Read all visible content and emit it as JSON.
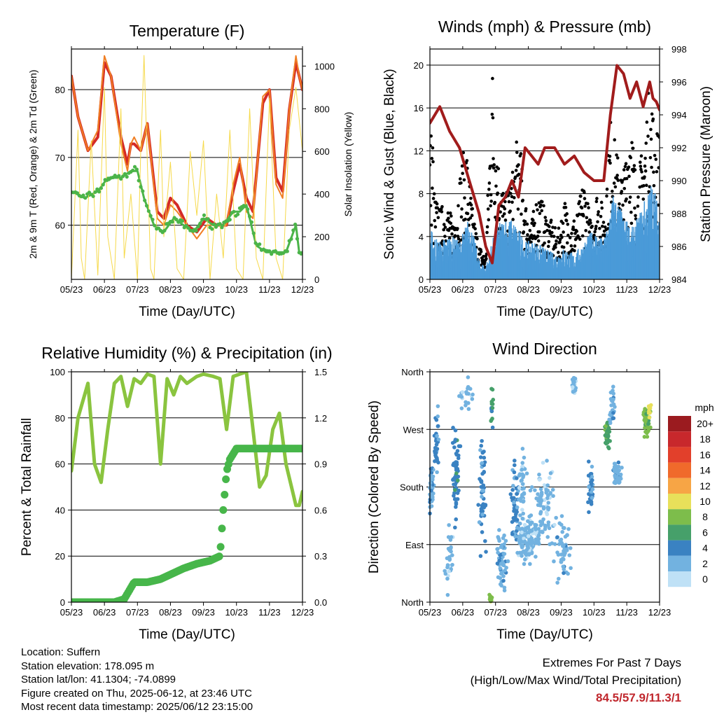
{
  "colors": {
    "temp_2m": "#f07f24",
    "temp_9m": "#d42a26",
    "dewpoint": "#4bb449",
    "solar": "#f6d94a",
    "wind": "#4a9ad8",
    "gust": "#000000",
    "pressure": "#a11c1c",
    "rh": "#8ac43f",
    "precip": "#47b64a"
  },
  "chart_data": [
    {
      "id": "temperature",
      "type": "line",
      "title": "Temperature (F)",
      "xlabel": "Time (Day/UTC)",
      "ylabel": "2m & 9m T (Red, Orange) & 2m Td (Green)",
      "y2label": "Solar Insolation (Yellow)",
      "x_ticks": [
        "05/23",
        "06/23",
        "07/23",
        "08/23",
        "09/23",
        "10/23",
        "11/23",
        "12/23"
      ],
      "ylim": [
        52,
        86
      ],
      "y_ticks": [
        60,
        70,
        80
      ],
      "y2lim": [
        0,
        1080
      ],
      "y2_ticks": [
        0,
        200,
        400,
        600,
        800,
        1000
      ],
      "grid": true,
      "series": [
        {
          "key": "temp_9m",
          "axis": "left",
          "width": 4,
          "x": [
            0,
            0.2,
            0.5,
            0.8,
            1.0,
            1.2,
            1.5,
            1.7,
            1.8,
            1.9,
            2.1,
            2.3,
            2.6,
            2.8,
            3.0,
            3.2,
            3.5,
            3.8,
            4.1,
            4.4,
            4.7,
            4.9,
            5.1,
            5.3,
            5.5,
            5.8,
            6.0,
            6.2,
            6.4,
            6.6,
            6.8,
            6.9,
            7.0
          ],
          "y": [
            82,
            76,
            71,
            73,
            84,
            82,
            73,
            69,
            72,
            72,
            71,
            75,
            62,
            61,
            64,
            63,
            60,
            59,
            61,
            60,
            60,
            65,
            69,
            64,
            62,
            78,
            80,
            67,
            65,
            77,
            84,
            82,
            80
          ]
        },
        {
          "key": "temp_2m",
          "axis": "left",
          "width": 2,
          "x": [
            0,
            0.2,
            0.5,
            0.8,
            1.0,
            1.2,
            1.5,
            1.7,
            1.8,
            1.9,
            2.1,
            2.3,
            2.6,
            2.8,
            3.0,
            3.2,
            3.5,
            3.8,
            4.1,
            4.4,
            4.7,
            4.9,
            5.1,
            5.3,
            5.5,
            5.8,
            6.0,
            6.2,
            6.4,
            6.6,
            6.8,
            6.9,
            7.0
          ],
          "y": [
            82,
            76,
            71,
            74,
            85,
            82,
            72,
            68,
            72,
            73,
            71,
            75,
            61,
            60,
            63,
            62,
            60,
            58,
            60,
            60,
            60,
            66,
            70,
            62,
            61,
            79,
            80,
            66,
            64,
            77,
            85,
            82,
            80
          ]
        },
        {
          "key": "dewpoint",
          "axis": "left",
          "width": 3,
          "x": [
            0,
            0.4,
            0.8,
            1.1,
            1.5,
            1.8,
            2.0,
            2.2,
            2.5,
            2.8,
            3.1,
            3.4,
            3.7,
            4.0,
            4.3,
            4.6,
            4.9,
            5.1,
            5.3,
            5.6,
            5.9,
            6.2,
            6.5,
            6.8,
            6.9,
            7.0
          ],
          "y": [
            65,
            64,
            65,
            67,
            67,
            68,
            68,
            64,
            60,
            59,
            61,
            60,
            59,
            61,
            60,
            60,
            62,
            62,
            63,
            57,
            56,
            56,
            56,
            60,
            56,
            56
          ]
        },
        {
          "key": "solar",
          "axis": "right",
          "width": 1,
          "x": [
            0,
            0.2,
            0.3,
            0.4,
            0.6,
            0.8,
            1.0,
            1.1,
            1.3,
            1.5,
            1.6,
            1.8,
            2.0,
            2.1,
            2.2,
            2.4,
            2.5,
            2.7,
            2.8,
            3.0,
            3.2,
            3.4,
            3.6,
            3.8,
            4.0,
            4.2,
            4.4,
            4.6,
            4.8,
            5.0,
            5.2,
            5.4,
            5.6,
            5.8,
            6.0,
            6.2,
            6.4,
            6.6,
            6.8,
            7.0
          ],
          "y": [
            0,
            700,
            100,
            0,
            650,
            20,
            900,
            200,
            0,
            800,
            100,
            400,
            0,
            600,
            1050,
            50,
            0,
            700,
            200,
            550,
            50,
            0,
            600,
            300,
            650,
            0,
            400,
            100,
            700,
            50,
            0,
            800,
            100,
            0,
            850,
            100,
            0,
            700,
            900,
            600
          ]
        }
      ]
    },
    {
      "id": "winds",
      "type": "scatter",
      "title": "Winds (mph) & Pressure (mb)",
      "xlabel": "Time (Day/UTC)",
      "ylabel": "Sonic Wind & Gust (Blue, Black)",
      "y2label": "Station Pressure (Maroon)",
      "x_ticks": [
        "05/23",
        "06/23",
        "07/23",
        "08/23",
        "09/23",
        "10/23",
        "11/23",
        "12/23"
      ],
      "ylim": [
        0,
        21.5
      ],
      "y_ticks": [
        0,
        4,
        8,
        12,
        16,
        20
      ],
      "y2lim": [
        984,
        998
      ],
      "y2_ticks": [
        984,
        986,
        988,
        990,
        992,
        994,
        996,
        998
      ],
      "grid": true,
      "wind": {
        "x": [
          0,
          0.3,
          0.6,
          0.9,
          1.2,
          1.5,
          1.7,
          2.0,
          2.3,
          2.6,
          2.9,
          3.2,
          3.5,
          3.8,
          4.1,
          4.4,
          4.7,
          5.0,
          5.3,
          5.6,
          5.9,
          6.2,
          6.5,
          6.8,
          7.0
        ],
        "y": [
          4,
          3,
          3.5,
          3,
          5,
          1.5,
          1,
          4,
          5,
          4.5,
          3,
          3,
          2.5,
          2,
          2.5,
          2,
          3,
          4,
          3,
          7,
          5,
          4,
          6,
          8,
          5
        ]
      },
      "gust": {
        "x": [
          0.1,
          0.3,
          0.5,
          0.7,
          0.9,
          1.1,
          1.3,
          1.5,
          1.7,
          1.9,
          2.1,
          2.3,
          2.5,
          2.7,
          2.9,
          3.1,
          3.3,
          3.5,
          3.7,
          3.9,
          4.1,
          4.3,
          4.5,
          4.7,
          4.9,
          5.1,
          5.3,
          5.5,
          5.7,
          5.9,
          6.1,
          6.3,
          6.5,
          6.7,
          6.9
        ],
        "y": [
          8,
          6,
          7,
          5,
          9,
          12,
          6,
          3,
          2,
          19,
          10,
          7,
          9,
          13,
          7,
          5,
          8,
          6,
          5,
          4,
          7,
          5,
          6,
          9,
          5,
          8,
          6,
          14,
          11,
          9,
          16,
          8,
          12,
          17,
          13
        ]
      },
      "pressure": {
        "x": [
          0,
          0.3,
          0.6,
          0.9,
          1.2,
          1.5,
          1.7,
          1.9,
          2.1,
          2.3,
          2.5,
          2.7,
          2.9,
          3.1,
          3.3,
          3.5,
          3.8,
          4.1,
          4.4,
          4.7,
          5.0,
          5.3,
          5.5,
          5.7,
          5.9,
          6.1,
          6.3,
          6.5,
          6.7,
          6.8,
          6.9,
          7.0
        ],
        "y": [
          993.5,
          994.5,
          993,
          992,
          990,
          988,
          986,
          985,
          988.5,
          989,
          990,
          989,
          992,
          991.5,
          991,
          992,
          992,
          991,
          991.5,
          990.5,
          990,
          990,
          994,
          997,
          996.5,
          995,
          996,
          994.5,
          996,
          995,
          994.8,
          994.3
        ]
      }
    },
    {
      "id": "humidity",
      "type": "line",
      "title": "Relative Humidity (%) & Precipitation (in)",
      "xlabel": "Time (Day/UTC)",
      "ylabel": "Percent & Total Rainfall",
      "x_ticks": [
        "05/23",
        "06/23",
        "07/23",
        "08/23",
        "09/23",
        "10/23",
        "11/23",
        "12/23"
      ],
      "ylim": [
        0,
        100
      ],
      "y_ticks": [
        0,
        20,
        40,
        60,
        80,
        100
      ],
      "y2lim": [
        0,
        1.5
      ],
      "y2_ticks": [
        "0.0",
        "0.3",
        "0.6",
        "0.9",
        "1.2",
        "1.5"
      ],
      "grid": true,
      "rh": {
        "x": [
          0,
          0.2,
          0.5,
          0.7,
          0.9,
          1.1,
          1.3,
          1.5,
          1.7,
          1.9,
          2.1,
          2.3,
          2.5,
          2.7,
          2.9,
          3.1,
          3.3,
          3.5,
          3.8,
          4.0,
          4.3,
          4.5,
          4.7,
          4.9,
          5.1,
          5.3,
          5.5,
          5.7,
          5.9,
          6.1,
          6.3,
          6.5,
          6.7,
          6.8,
          6.9,
          7.0
        ],
        "y": [
          57,
          80,
          95,
          60,
          52,
          75,
          95,
          98,
          85,
          97,
          95,
          99,
          98,
          60,
          97,
          90,
          98,
          95,
          98,
          99,
          98,
          97,
          75,
          98,
          99,
          100,
          75,
          50,
          55,
          75,
          82,
          60,
          48,
          42,
          42,
          48
        ]
      },
      "precip": {
        "x": [
          0,
          1.3,
          1.6,
          1.9,
          2.3,
          2.7,
          3.0,
          3.4,
          3.8,
          4.2,
          4.5,
          4.6,
          4.7,
          4.8,
          5.0,
          5.5,
          6.0,
          6.5,
          7.0
        ],
        "y": [
          0,
          0,
          0.02,
          0.13,
          0.13,
          0.15,
          0.18,
          0.22,
          0.25,
          0.27,
          0.3,
          0.6,
          0.85,
          0.93,
          1.0,
          1.0,
          1.0,
          1.0,
          1.0
        ]
      }
    },
    {
      "id": "direction",
      "type": "scatter",
      "title": "Wind Direction",
      "xlabel": "Time (Day/UTC)",
      "ylabel": "Direction (Colored By Speed)",
      "x_ticks": [
        "05/23",
        "06/23",
        "07/23",
        "08/23",
        "09/23",
        "10/23",
        "11/23",
        "12/23"
      ],
      "ylim": [
        0,
        360
      ],
      "y_ticks": [
        {
          "value": 0,
          "label": "North"
        },
        {
          "value": 90,
          "label": "East"
        },
        {
          "value": 180,
          "label": "South"
        },
        {
          "value": 270,
          "label": "West"
        },
        {
          "value": 360,
          "label": "North"
        }
      ],
      "grid": true,
      "legend": {
        "title": "mph",
        "placement": "right",
        "labels": [
          "20+",
          "18",
          "16",
          "14",
          "12",
          "10",
          "8",
          "6",
          "4",
          "2",
          "0"
        ],
        "colors": [
          "#9b1b1f",
          "#c8282c",
          "#e2402b",
          "#f06a2b",
          "#f7a545",
          "#e8e05a",
          "#7dbd4b",
          "#46a06a",
          "#3a82c2",
          "#72b2e0",
          "#bfe1f6"
        ]
      },
      "clusters": [
        {
          "x": 0.05,
          "dir": 180,
          "spread_x": 0.1,
          "spread_y": 60,
          "speed": 2,
          "n": 40
        },
        {
          "x": 0.2,
          "dir": 240,
          "spread_x": 0.1,
          "spread_y": 80,
          "speed": 3,
          "n": 30
        },
        {
          "x": 0.8,
          "dir": 200,
          "spread_x": 0.15,
          "spread_y": 100,
          "speed": 4,
          "n": 60
        },
        {
          "x": 0.6,
          "dir": 80,
          "spread_x": 0.2,
          "spread_y": 80,
          "speed": 1,
          "n": 30
        },
        {
          "x": 1.1,
          "dir": 320,
          "spread_x": 0.3,
          "spread_y": 40,
          "speed": 1,
          "n": 20
        },
        {
          "x": 1.6,
          "dir": 180,
          "spread_x": 0.15,
          "spread_y": 160,
          "speed": 3,
          "n": 50
        },
        {
          "x": 1.85,
          "dir": 5,
          "spread_x": 0.05,
          "spread_y": 8,
          "speed": 8,
          "n": 20
        },
        {
          "x": 1.9,
          "dir": 300,
          "spread_x": 0.05,
          "spread_y": 50,
          "speed": 5,
          "n": 15
        },
        {
          "x": 2.2,
          "dir": 60,
          "spread_x": 0.2,
          "spread_y": 60,
          "speed": 2,
          "n": 60
        },
        {
          "x": 2.6,
          "dir": 150,
          "spread_x": 0.2,
          "spread_y": 90,
          "speed": 3,
          "n": 50
        },
        {
          "x": 2.8,
          "dir": 180,
          "spread_x": 0.2,
          "spread_y": 80,
          "speed": 1,
          "n": 40
        },
        {
          "x": 3.0,
          "dir": 100,
          "spread_x": 0.5,
          "spread_y": 50,
          "speed": 1,
          "n": 130
        },
        {
          "x": 3.5,
          "dir": 150,
          "spread_x": 0.5,
          "spread_y": 90,
          "speed": 1,
          "n": 80
        },
        {
          "x": 4.0,
          "dir": 80,
          "spread_x": 0.4,
          "spread_y": 60,
          "speed": 2,
          "n": 50
        },
        {
          "x": 4.4,
          "dir": 340,
          "spread_x": 0.1,
          "spread_y": 20,
          "speed": 1,
          "n": 25
        },
        {
          "x": 4.9,
          "dir": 180,
          "spread_x": 0.1,
          "spread_y": 60,
          "speed": 3,
          "n": 40
        },
        {
          "x": 5.4,
          "dir": 260,
          "spread_x": 0.1,
          "spread_y": 30,
          "speed": 6,
          "n": 40
        },
        {
          "x": 5.7,
          "dir": 200,
          "spread_x": 0.2,
          "spread_y": 30,
          "speed": 2,
          "n": 40
        },
        {
          "x": 5.55,
          "dir": 310,
          "spread_x": 0.1,
          "spread_y": 50,
          "speed": 2,
          "n": 25
        },
        {
          "x": 6.6,
          "dir": 280,
          "spread_x": 0.15,
          "spread_y": 30,
          "speed": 7,
          "n": 45
        },
        {
          "x": 6.7,
          "dir": 300,
          "spread_x": 0.05,
          "spread_y": 20,
          "speed": 9,
          "n": 12
        }
      ]
    }
  ],
  "info_left": [
    "Location: Suffern",
    "Station elevation: 178.095 m",
    "Station lat/lon: 41.1304; -74.0899",
    "Figure created on Thu, 2025-06-12, at 23:46 UTC",
    "Most recent data timestamp: 2025/06/12 23:15:00"
  ],
  "extremes": {
    "title": "Extremes For Past 7 Days",
    "subtitle": "(High/Low/Max Wind/Total Precipitation)",
    "values": "84.5/57.9/11.3/1"
  }
}
